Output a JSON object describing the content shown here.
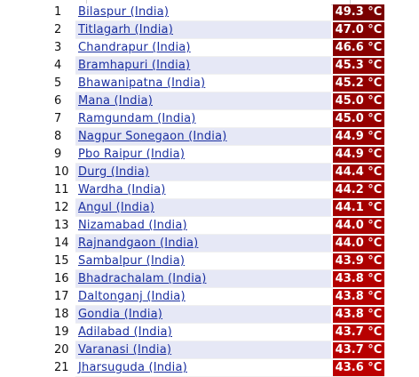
{
  "rows": [
    {
      "rank": "1",
      "city": "Bilaspur (India)",
      "temp": "49.3 °C",
      "color": "#7a0000"
    },
    {
      "rank": "2",
      "city": "Titlagarh (India)",
      "temp": "47.0 °C",
      "color": "#840000"
    },
    {
      "rank": "3",
      "city": "Chandrapur (India)",
      "temp": "46.6 °C",
      "color": "#880000"
    },
    {
      "rank": "4",
      "city": "Bramhapuri (India)",
      "temp": "45.3 °C",
      "color": "#900000"
    },
    {
      "rank": "5",
      "city": "Bhawanipatna (India)",
      "temp": "45.2 °C",
      "color": "#920000"
    },
    {
      "rank": "6",
      "city": "Mana (India)",
      "temp": "45.0 °C",
      "color": "#960000"
    },
    {
      "rank": "7",
      "city": "Ramgundam (India)",
      "temp": "45.0 °C",
      "color": "#960000"
    },
    {
      "rank": "8",
      "city": "Nagpur Sonegaon (India)",
      "temp": "44.9 °C",
      "color": "#980000"
    },
    {
      "rank": "9",
      "city": "Pbo Raipur (India)",
      "temp": "44.9 °C",
      "color": "#980000"
    },
    {
      "rank": "10",
      "city": "Durg (India)",
      "temp": "44.4 °C",
      "color": "#9e0000"
    },
    {
      "rank": "11",
      "city": "Wardha (India)",
      "temp": "44.2 °C",
      "color": "#a20000"
    },
    {
      "rank": "12",
      "city": "Angul (India)",
      "temp": "44.1 °C",
      "color": "#a40000"
    },
    {
      "rank": "13",
      "city": "Nizamabad (India)",
      "temp": "44.0 °C",
      "color": "#a80000"
    },
    {
      "rank": "14",
      "city": "Rajnandgaon (India)",
      "temp": "44.0 °C",
      "color": "#a80000"
    },
    {
      "rank": "15",
      "city": "Sambalpur (India)",
      "temp": "43.9 °C",
      "color": "#ae0000"
    },
    {
      "rank": "16",
      "city": "Bhadrachalam (India)",
      "temp": "43.8 °C",
      "color": "#b40000"
    },
    {
      "rank": "17",
      "city": "Daltonganj (India)",
      "temp": "43.8 °C",
      "color": "#b40000"
    },
    {
      "rank": "18",
      "city": "Gondia (India)",
      "temp": "43.8 °C",
      "color": "#b40000"
    },
    {
      "rank": "19",
      "city": "Adilabad (India)",
      "temp": "43.7 °C",
      "color": "#b80000"
    },
    {
      "rank": "20",
      "city": "Varanasi (India)",
      "temp": "43.7 °C",
      "color": "#b80000"
    },
    {
      "rank": "21",
      "city": "Jharsuguda (India)",
      "temp": "43.6 °C",
      "color": "#bc0000"
    }
  ]
}
